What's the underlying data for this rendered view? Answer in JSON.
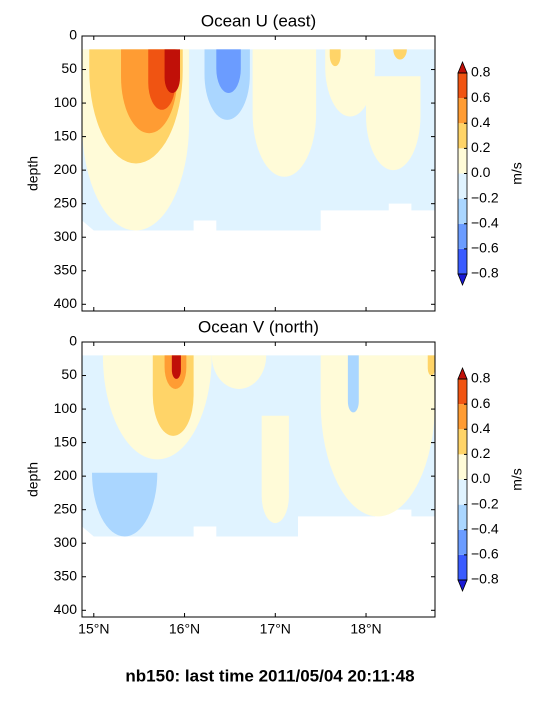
{
  "chart_data": [
    {
      "type": "contour",
      "title": "Ocean U (east)",
      "y_label": "depth",
      "xlim": [
        14.87,
        18.76
      ],
      "xticks": [
        15,
        16,
        17,
        18
      ],
      "ylim": [
        410,
        0
      ],
      "yticks": [
        0,
        50,
        100,
        150,
        200,
        250,
        300,
        350,
        400
      ],
      "colorbar_label": "m/s",
      "levels": [
        -0.8,
        -0.6,
        -0.4,
        -0.2,
        0,
        0.2,
        0.4,
        0.6,
        0.8
      ],
      "colorbar_ticks": [
        {
          "value": -0.8,
          "label": "−0.8"
        },
        {
          "value": -0.6,
          "label": "−0.6"
        },
        {
          "value": -0.4,
          "label": "−0.4"
        },
        {
          "value": -0.2,
          "label": "−0.2"
        },
        {
          "value": 0,
          "label": "0.0"
        },
        0.2,
        0.4,
        0.6,
        0.8
      ],
      "colors": [
        "#3a5cff",
        "#6b9cff",
        "#aad6ff",
        "#e0f3ff",
        "#fffbd8",
        "#ffd468",
        "#ff9c33",
        "#f05412"
      ],
      "extend_colors": [
        "#1a1ad6",
        "#c01008"
      ]
    },
    {
      "type": "contour",
      "title": "Ocean V (north)",
      "y_label": "depth",
      "xlim": [
        14.87,
        18.76
      ],
      "xticks": [
        {
          "value": 15,
          "label": "15°N"
        },
        {
          "value": 16,
          "label": "16°N"
        },
        {
          "value": 17,
          "label": "17°N"
        },
        {
          "value": 18,
          "label": "18°N"
        }
      ],
      "ylim": [
        410,
        0
      ],
      "yticks": [
        0,
        50,
        100,
        150,
        200,
        250,
        300,
        350,
        400
      ],
      "colorbar_label": "m/s",
      "levels": [
        -0.8,
        -0.6,
        -0.4,
        -0.2,
        0,
        0.2,
        0.4,
        0.6,
        0.8
      ],
      "colorbar_ticks": [
        {
          "value": -0.8,
          "label": "−0.8"
        },
        {
          "value": -0.6,
          "label": "−0.6"
        },
        {
          "value": -0.4,
          "label": "−0.4"
        },
        {
          "value": -0.2,
          "label": "−0.2"
        },
        {
          "value": 0,
          "label": "0.0"
        },
        0.2,
        0.4,
        0.6,
        0.8
      ],
      "colors": [
        "#3a5cff",
        "#6b9cff",
        "#aad6ff",
        "#e0f3ff",
        "#fffbd8",
        "#ffd468",
        "#ff9c33",
        "#f05412"
      ],
      "extend_colors": [
        "#1a1ad6",
        "#c01008"
      ]
    }
  ],
  "footer": "nb150: last time 2011/05/04 20:11:48"
}
